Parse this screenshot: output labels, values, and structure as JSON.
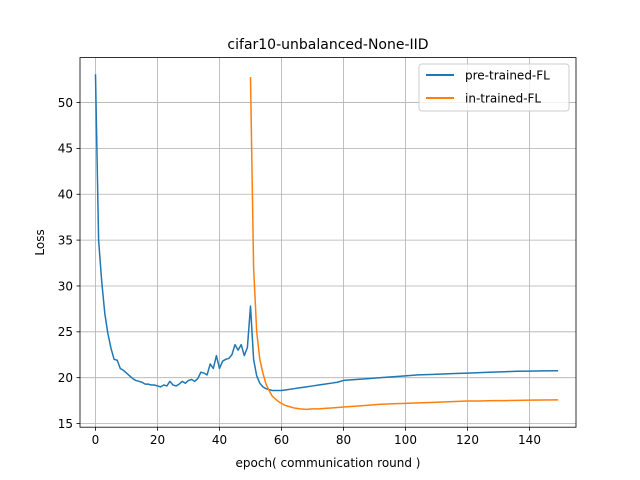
{
  "chart_data": {
    "type": "line",
    "title": "cifar10-unbalanced-None-IID",
    "xlabel": "epoch( communication round )",
    "ylabel": "Loss",
    "xlim": [
      -5,
      155
    ],
    "ylim": [
      14.6,
      54.9
    ],
    "xticks": [
      0,
      20,
      40,
      60,
      80,
      100,
      120,
      140
    ],
    "yticks": [
      15,
      20,
      25,
      30,
      35,
      40,
      45,
      50
    ],
    "grid": true,
    "legend_position": "upper-right",
    "series": [
      {
        "name": "pre-trained-FL",
        "color": "#1f77b4",
        "points": [
          [
            0,
            53.0
          ],
          [
            1,
            35.0
          ],
          [
            2,
            30.5
          ],
          [
            3,
            27.0
          ],
          [
            4,
            24.8
          ],
          [
            5,
            23.2
          ],
          [
            6,
            22.0
          ],
          [
            7,
            21.9
          ],
          [
            8,
            21.0
          ],
          [
            9,
            20.8
          ],
          [
            10,
            20.5
          ],
          [
            11,
            20.2
          ],
          [
            12,
            19.9
          ],
          [
            13,
            19.7
          ],
          [
            14,
            19.6
          ],
          [
            15,
            19.5
          ],
          [
            16,
            19.3
          ],
          [
            17,
            19.3
          ],
          [
            18,
            19.2
          ],
          [
            19,
            19.2
          ],
          [
            20,
            19.1
          ],
          [
            21,
            19.0
          ],
          [
            22,
            19.2
          ],
          [
            23,
            19.1
          ],
          [
            24,
            19.6
          ],
          [
            25,
            19.2
          ],
          [
            26,
            19.1
          ],
          [
            27,
            19.3
          ],
          [
            28,
            19.6
          ],
          [
            29,
            19.4
          ],
          [
            30,
            19.7
          ],
          [
            31,
            19.8
          ],
          [
            32,
            19.6
          ],
          [
            33,
            19.9
          ],
          [
            34,
            20.6
          ],
          [
            35,
            20.5
          ],
          [
            36,
            20.3
          ],
          [
            37,
            21.5
          ],
          [
            38,
            21.0
          ],
          [
            39,
            22.4
          ],
          [
            40,
            21.0
          ],
          [
            41,
            21.8
          ],
          [
            42,
            22.0
          ],
          [
            43,
            22.1
          ],
          [
            44,
            22.5
          ],
          [
            45,
            23.6
          ],
          [
            46,
            23.0
          ],
          [
            47,
            23.6
          ],
          [
            48,
            22.4
          ],
          [
            49,
            23.3
          ],
          [
            50,
            27.8
          ],
          [
            51,
            22.0
          ],
          [
            52,
            20.2
          ],
          [
            53,
            19.4
          ],
          [
            54,
            19.0
          ],
          [
            55,
            18.8
          ],
          [
            56,
            18.7
          ],
          [
            57,
            18.6
          ],
          [
            58,
            18.6
          ],
          [
            59,
            18.6
          ],
          [
            60,
            18.6
          ],
          [
            62,
            18.7
          ],
          [
            64,
            18.8
          ],
          [
            66,
            18.9
          ],
          [
            68,
            19.0
          ],
          [
            70,
            19.1
          ],
          [
            72,
            19.2
          ],
          [
            74,
            19.3
          ],
          [
            76,
            19.4
          ],
          [
            78,
            19.5
          ],
          [
            80,
            19.7
          ],
          [
            84,
            19.8
          ],
          [
            88,
            19.9
          ],
          [
            92,
            20.0
          ],
          [
            96,
            20.1
          ],
          [
            100,
            20.2
          ],
          [
            104,
            20.3
          ],
          [
            108,
            20.35
          ],
          [
            112,
            20.4
          ],
          [
            116,
            20.45
          ],
          [
            120,
            20.5
          ],
          [
            124,
            20.55
          ],
          [
            128,
            20.6
          ],
          [
            132,
            20.65
          ],
          [
            136,
            20.7
          ],
          [
            140,
            20.72
          ],
          [
            144,
            20.74
          ],
          [
            149,
            20.76
          ]
        ]
      },
      {
        "name": "in-trained-FL",
        "color": "#ff7f0e",
        "points": [
          [
            50,
            52.7
          ],
          [
            51,
            32.0
          ],
          [
            52,
            25.0
          ],
          [
            53,
            22.0
          ],
          [
            54,
            20.5
          ],
          [
            55,
            19.3
          ],
          [
            56,
            18.6
          ],
          [
            57,
            18.0
          ],
          [
            58,
            17.7
          ],
          [
            59,
            17.4
          ],
          [
            60,
            17.2
          ],
          [
            61,
            17.0
          ],
          [
            62,
            16.9
          ],
          [
            63,
            16.8
          ],
          [
            64,
            16.7
          ],
          [
            65,
            16.65
          ],
          [
            66,
            16.6
          ],
          [
            68,
            16.55
          ],
          [
            70,
            16.6
          ],
          [
            72,
            16.6
          ],
          [
            74,
            16.65
          ],
          [
            76,
            16.7
          ],
          [
            78,
            16.75
          ],
          [
            80,
            16.8
          ],
          [
            84,
            16.9
          ],
          [
            88,
            17.0
          ],
          [
            92,
            17.1
          ],
          [
            96,
            17.15
          ],
          [
            100,
            17.2
          ],
          [
            104,
            17.25
          ],
          [
            108,
            17.3
          ],
          [
            112,
            17.35
          ],
          [
            116,
            17.4
          ],
          [
            120,
            17.45
          ],
          [
            124,
            17.45
          ],
          [
            128,
            17.5
          ],
          [
            132,
            17.5
          ],
          [
            136,
            17.52
          ],
          [
            140,
            17.55
          ],
          [
            144,
            17.56
          ],
          [
            149,
            17.58
          ]
        ]
      }
    ]
  }
}
